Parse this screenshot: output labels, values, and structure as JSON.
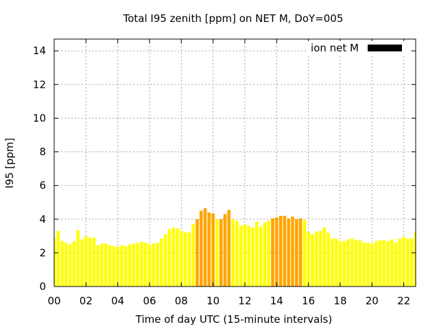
{
  "chart_data": {
    "type": "bar",
    "title": "Total I95 zenith [ppm] on NET M, DoY=005",
    "xlabel": "Time of day UTC (15-minute intervals)",
    "ylabel": "I95 [ppm]",
    "xlim": [
      0,
      22.75
    ],
    "ylim": [
      0,
      14.7
    ],
    "x_ticks": [
      "00",
      "02",
      "04",
      "06",
      "08",
      "10",
      "12",
      "14",
      "16",
      "18",
      "20",
      "22"
    ],
    "y_ticks": [
      "0",
      "2",
      "4",
      "6",
      "8",
      "10",
      "12",
      "14"
    ],
    "grid": true,
    "legend": {
      "label": "ion net M",
      "color": "#000000",
      "placement": "top-right"
    },
    "interval_hours": 0.25,
    "colors": {
      "normal": "#ffff00",
      "elevated": "#ffa500"
    },
    "values": [
      2.9,
      3.3,
      2.7,
      2.6,
      2.5,
      2.7,
      3.35,
      2.8,
      3.0,
      2.9,
      2.9,
      2.45,
      2.55,
      2.55,
      2.45,
      2.4,
      2.35,
      2.45,
      2.4,
      2.5,
      2.55,
      2.6,
      2.65,
      2.6,
      2.5,
      2.55,
      2.6,
      2.85,
      3.1,
      3.4,
      3.5,
      3.45,
      3.3,
      3.25,
      3.2,
      3.7,
      4.0,
      4.5,
      4.65,
      4.4,
      4.35,
      4.0,
      4.0,
      4.3,
      4.55,
      4.0,
      3.9,
      3.6,
      3.7,
      3.6,
      3.5,
      3.85,
      3.55,
      3.8,
      3.9,
      4.05,
      4.1,
      4.2,
      4.2,
      4.05,
      4.15,
      4.0,
      4.05,
      3.95,
      3.25,
      3.1,
      3.25,
      3.3,
      3.5,
      3.2,
      2.85,
      2.85,
      2.7,
      2.7,
      2.8,
      2.85,
      2.75,
      2.75,
      2.6,
      2.6,
      2.55,
      2.7,
      2.75,
      2.75,
      2.7,
      2.8,
      2.6,
      2.85,
      2.95,
      2.85,
      2.85,
      3.25,
      3.1
    ],
    "elevated": [
      false,
      false,
      false,
      false,
      false,
      false,
      false,
      false,
      false,
      false,
      false,
      false,
      false,
      false,
      false,
      false,
      false,
      false,
      false,
      false,
      false,
      false,
      false,
      false,
      false,
      false,
      false,
      false,
      false,
      false,
      false,
      false,
      false,
      false,
      false,
      false,
      true,
      true,
      true,
      true,
      true,
      false,
      true,
      true,
      true,
      false,
      false,
      false,
      false,
      false,
      false,
      false,
      false,
      false,
      false,
      true,
      true,
      true,
      true,
      true,
      true,
      true,
      true,
      false,
      false,
      false,
      false,
      false,
      false,
      false,
      false,
      false,
      false,
      false,
      false,
      false,
      false,
      false,
      false,
      false,
      false,
      false,
      false,
      false,
      false,
      false,
      false,
      false,
      false,
      false,
      false,
      false,
      false
    ]
  }
}
